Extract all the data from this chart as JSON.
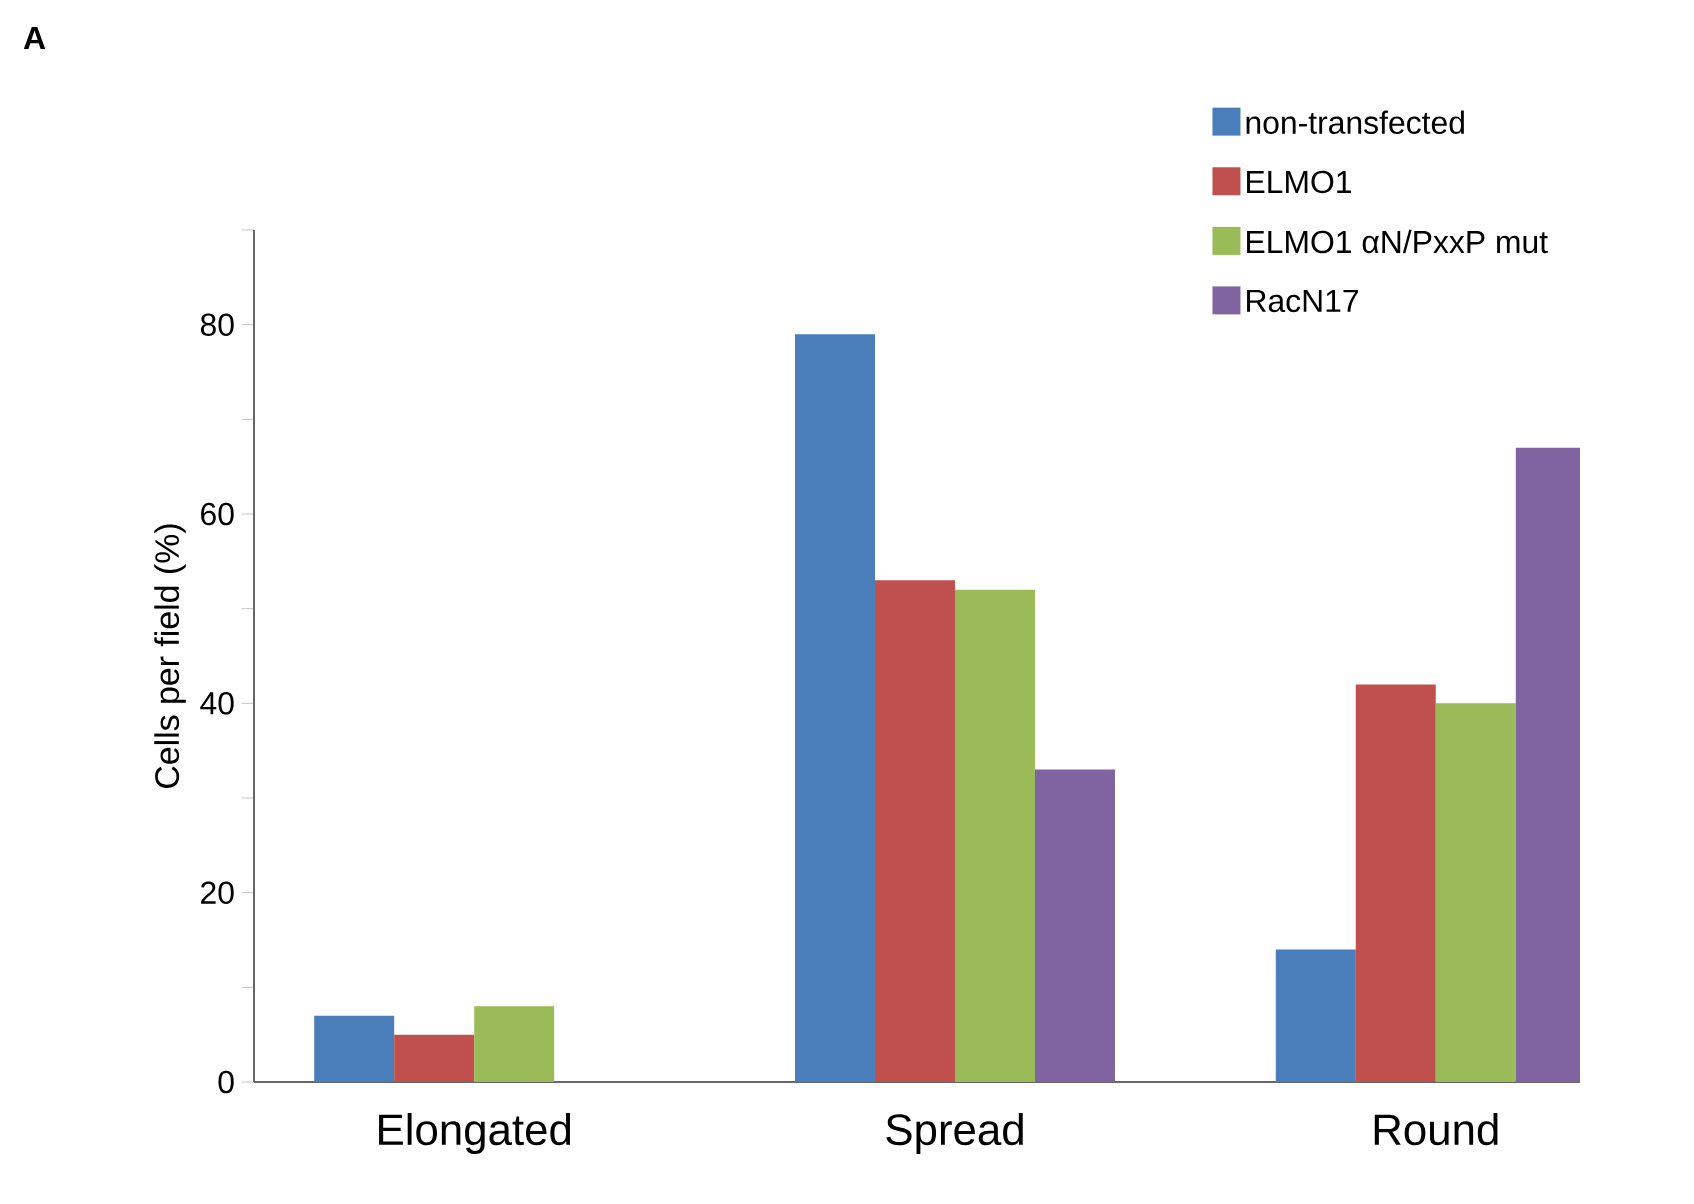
{
  "chart_data": {
    "type": "bar",
    "ylabel": "Cells per field (%)",
    "annotations": [
      "A"
    ],
    "categories": [
      "Elongated",
      "Spread",
      "Round"
    ],
    "series": [
      {
        "name": "non-transfected",
        "color": "#4a7ebb",
        "values": [
          7,
          79,
          14
        ]
      },
      {
        "name": "ELMO1",
        "color": "#c0504d",
        "values": [
          5,
          53,
          42
        ]
      },
      {
        "name": "ELMO1 αN/PxxP mut",
        "color": "#9bbb59",
        "values": [
          8,
          52,
          40
        ]
      },
      {
        "name": "RacN17",
        "color": "#8064a2",
        "values": [
          0,
          33,
          67
        ]
      }
    ],
    "ylim": [
      0,
      90
    ],
    "yticks": [
      0,
      {
        "value": 10,
        "label": null
      },
      20,
      {
        "value": 30,
        "label": null
      },
      40,
      {
        "value": 50,
        "label": null
      },
      60,
      {
        "value": 70,
        "label": null
      },
      80,
      {
        "value": 90,
        "label": null
      }
    ],
    "grid": false,
    "legend": "top right"
  }
}
